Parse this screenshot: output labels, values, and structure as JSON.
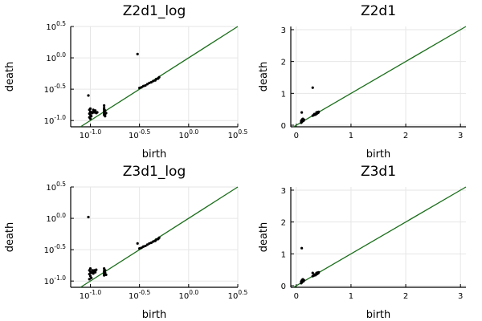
{
  "chart_data": [
    {
      "type": "scatter",
      "title": "Z2d1_log",
      "xlabel": "birth",
      "ylabel": "death",
      "scale": "log10",
      "xlim": [
        -1.2,
        0.5
      ],
      "ylim": [
        -1.1,
        0.5
      ],
      "xticks": [
        {
          "base": "10",
          "exp": "-1.0",
          "v": -1.0
        },
        {
          "base": "10",
          "exp": "-0.5",
          "v": -0.5
        },
        {
          "base": "10",
          "exp": "0.0",
          "v": 0.0
        },
        {
          "base": "10",
          "exp": "0.5",
          "v": 0.5
        }
      ],
      "yticks": [
        {
          "base": "10",
          "exp": "-1.0",
          "v": -1.0
        },
        {
          "base": "10",
          "exp": "-0.5",
          "v": -0.5
        },
        {
          "base": "10",
          "exp": "0.0",
          "v": 0.0
        },
        {
          "base": "10",
          "exp": "0.5",
          "v": 0.5
        }
      ],
      "diagonal_color": "#1a6e1a",
      "point_color": "#000000",
      "grid": true,
      "points": [
        [
          -1.02,
          -0.6
        ],
        [
          -0.52,
          0.06
        ],
        [
          -1.0,
          -0.81
        ],
        [
          -1.01,
          -0.83
        ],
        [
          -1.0,
          -0.86
        ],
        [
          -0.99,
          -0.87
        ],
        [
          -1.01,
          -0.89
        ],
        [
          -1.0,
          -0.91
        ],
        [
          -0.99,
          -0.93
        ],
        [
          -1.01,
          -0.95
        ],
        [
          -1.0,
          -0.97
        ],
        [
          -0.98,
          -0.88
        ],
        [
          -0.97,
          -0.86
        ],
        [
          -0.96,
          -0.87
        ],
        [
          -0.95,
          -0.86
        ],
        [
          -0.94,
          -0.88
        ],
        [
          -0.93,
          -0.87
        ],
        [
          -0.97,
          -0.83
        ],
        [
          -0.95,
          -0.84
        ],
        [
          -0.86,
          -0.91
        ],
        [
          -0.86,
          -0.89
        ],
        [
          -0.86,
          -0.87
        ],
        [
          -0.86,
          -0.85
        ],
        [
          -0.85,
          -0.84
        ],
        [
          -0.86,
          -0.82
        ],
        [
          -0.86,
          -0.8
        ],
        [
          -0.86,
          -0.76
        ],
        [
          -0.85,
          -0.93
        ],
        [
          -0.84,
          -0.88
        ],
        [
          -0.85,
          -0.9
        ],
        [
          -0.5,
          -0.48
        ],
        [
          -0.48,
          -0.47
        ],
        [
          -0.46,
          -0.45
        ],
        [
          -0.44,
          -0.44
        ],
        [
          -0.42,
          -0.42
        ],
        [
          -0.4,
          -0.4
        ],
        [
          -0.38,
          -0.39
        ],
        [
          -0.36,
          -0.37
        ],
        [
          -0.34,
          -0.36
        ],
        [
          -0.33,
          -0.34
        ],
        [
          -0.31,
          -0.33
        ],
        [
          -0.3,
          -0.31
        ]
      ]
    },
    {
      "type": "scatter",
      "title": "Z2d1",
      "xlabel": "birth",
      "ylabel": "death",
      "scale": "linear",
      "xlim": [
        -0.1,
        3.1
      ],
      "ylim": [
        -0.05,
        3.1
      ],
      "xticks": [
        {
          "label": "0",
          "v": 0
        },
        {
          "label": "1",
          "v": 1
        },
        {
          "label": "2",
          "v": 2
        },
        {
          "label": "3",
          "v": 3
        }
      ],
      "yticks": [
        {
          "label": "0",
          "v": 0
        },
        {
          "label": "1",
          "v": 1
        },
        {
          "label": "2",
          "v": 2
        },
        {
          "label": "3",
          "v": 3
        }
      ],
      "diagonal_color": "#1a6e1a",
      "point_color": "#000000",
      "grid": true,
      "points": [
        [
          0.1,
          0.4
        ],
        [
          0.3,
          1.18
        ],
        [
          0.09,
          0.13
        ],
        [
          0.1,
          0.16
        ],
        [
          0.11,
          0.12
        ],
        [
          0.12,
          0.15
        ],
        [
          0.1,
          0.1
        ],
        [
          0.13,
          0.14
        ],
        [
          0.11,
          0.18
        ],
        [
          0.12,
          0.2
        ],
        [
          0.14,
          0.17
        ],
        [
          0.09,
          0.08
        ],
        [
          0.3,
          0.3
        ],
        [
          0.32,
          0.32
        ],
        [
          0.34,
          0.34
        ],
        [
          0.36,
          0.35
        ],
        [
          0.38,
          0.37
        ],
        [
          0.4,
          0.39
        ],
        [
          0.35,
          0.33
        ],
        [
          0.33,
          0.35
        ],
        [
          0.37,
          0.4
        ],
        [
          0.39,
          0.41
        ],
        [
          0.41,
          0.42
        ]
      ]
    },
    {
      "type": "scatter",
      "title": "Z3d1_log",
      "xlabel": "birth",
      "ylabel": "death",
      "scale": "log10",
      "xlim": [
        -1.2,
        0.5
      ],
      "ylim": [
        -1.1,
        0.5
      ],
      "xticks": [
        {
          "base": "10",
          "exp": "-1.0",
          "v": -1.0
        },
        {
          "base": "10",
          "exp": "-0.5",
          "v": -0.5
        },
        {
          "base": "10",
          "exp": "0.0",
          "v": 0.0
        },
        {
          "base": "10",
          "exp": "0.5",
          "v": 0.5
        }
      ],
      "yticks": [
        {
          "base": "10",
          "exp": "-1.0",
          "v": -1.0
        },
        {
          "base": "10",
          "exp": "-0.5",
          "v": -0.5
        },
        {
          "base": "10",
          "exp": "0.0",
          "v": 0.0
        },
        {
          "base": "10",
          "exp": "0.5",
          "v": 0.5
        }
      ],
      "diagonal_color": "#1a6e1a",
      "point_color": "#000000",
      "grid": true,
      "points": [
        [
          -1.02,
          0.02
        ],
        [
          -0.52,
          -0.4
        ],
        [
          -1.0,
          -0.8
        ],
        [
          -1.01,
          -0.83
        ],
        [
          -1.0,
          -0.85
        ],
        [
          -0.99,
          -0.87
        ],
        [
          -1.01,
          -0.89
        ],
        [
          -1.0,
          -0.92
        ],
        [
          -0.99,
          -0.95
        ],
        [
          -1.01,
          -0.97
        ],
        [
          -0.98,
          -0.83
        ],
        [
          -0.97,
          -0.85
        ],
        [
          -0.96,
          -0.83
        ],
        [
          -0.95,
          -0.84
        ],
        [
          -0.94,
          -0.82
        ],
        [
          -0.97,
          -0.88
        ],
        [
          -0.95,
          -0.86
        ],
        [
          -0.86,
          -0.91
        ],
        [
          -0.86,
          -0.88
        ],
        [
          -0.86,
          -0.86
        ],
        [
          -0.86,
          -0.84
        ],
        [
          -0.85,
          -0.83
        ],
        [
          -0.86,
          -0.8
        ],
        [
          -0.84,
          -0.9
        ],
        [
          -0.85,
          -0.87
        ],
        [
          -0.5,
          -0.48
        ],
        [
          -0.48,
          -0.47
        ],
        [
          -0.46,
          -0.45
        ],
        [
          -0.44,
          -0.44
        ],
        [
          -0.42,
          -0.42
        ],
        [
          -0.4,
          -0.4
        ],
        [
          -0.38,
          -0.39
        ],
        [
          -0.36,
          -0.37
        ],
        [
          -0.34,
          -0.36
        ],
        [
          -0.33,
          -0.34
        ],
        [
          -0.31,
          -0.33
        ],
        [
          -0.3,
          -0.31
        ]
      ]
    },
    {
      "type": "scatter",
      "title": "Z3d1",
      "xlabel": "birth",
      "ylabel": "death",
      "scale": "linear",
      "xlim": [
        -0.1,
        3.1
      ],
      "ylim": [
        -0.05,
        3.1
      ],
      "xticks": [
        {
          "label": "0",
          "v": 0
        },
        {
          "label": "1",
          "v": 1
        },
        {
          "label": "2",
          "v": 2
        },
        {
          "label": "3",
          "v": 3
        }
      ],
      "yticks": [
        {
          "label": "0",
          "v": 0
        },
        {
          "label": "1",
          "v": 1
        },
        {
          "label": "2",
          "v": 2
        },
        {
          "label": "3",
          "v": 3
        }
      ],
      "diagonal_color": "#1a6e1a",
      "point_color": "#000000",
      "grid": true,
      "points": [
        [
          0.1,
          1.18
        ],
        [
          0.3,
          0.4
        ],
        [
          0.09,
          0.13
        ],
        [
          0.1,
          0.16
        ],
        [
          0.11,
          0.12
        ],
        [
          0.12,
          0.15
        ],
        [
          0.1,
          0.1
        ],
        [
          0.13,
          0.14
        ],
        [
          0.11,
          0.18
        ],
        [
          0.12,
          0.2
        ],
        [
          0.14,
          0.17
        ],
        [
          0.09,
          0.08
        ],
        [
          0.3,
          0.3
        ],
        [
          0.32,
          0.32
        ],
        [
          0.34,
          0.34
        ],
        [
          0.36,
          0.35
        ],
        [
          0.38,
          0.37
        ],
        [
          0.4,
          0.39
        ],
        [
          0.35,
          0.33
        ],
        [
          0.33,
          0.35
        ],
        [
          0.37,
          0.4
        ],
        [
          0.39,
          0.41
        ],
        [
          0.41,
          0.42
        ]
      ]
    }
  ]
}
